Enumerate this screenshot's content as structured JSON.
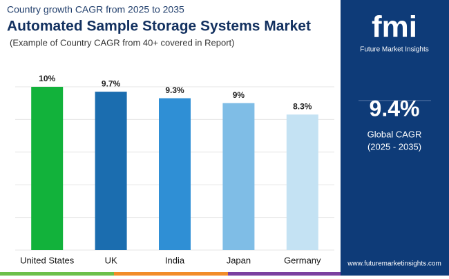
{
  "chart_data": {
    "type": "bar",
    "supertitle": "Country growth CAGR from 2025 to 2035",
    "title": "Automated Sample Storage Systems Market",
    "subtitle": "(Example of Country CAGR from 40+ covered in Report)",
    "categories": [
      "United States",
      "UK",
      "India",
      "Japan",
      "Germany"
    ],
    "values": [
      10,
      9.7,
      9.3,
      9,
      8.3
    ],
    "value_labels": [
      "10%",
      "9.7%",
      "9.3%",
      "9%",
      "8.3%"
    ],
    "colors": [
      "#12b23b",
      "#1b6daf",
      "#2f8fd5",
      "#7fbde6",
      "#c4e2f3"
    ],
    "ylim": [
      0,
      10
    ],
    "yticks": [
      0,
      2,
      4,
      6,
      8,
      10
    ],
    "grid": true
  },
  "side_panel": {
    "brand": "fmi",
    "brand_name": "Future Market Insights",
    "stat": "9.4%",
    "stat_label": "Global CAGR",
    "stat_period": "(2025 - 2035)",
    "website": "www.futuremarketinsights.com"
  }
}
